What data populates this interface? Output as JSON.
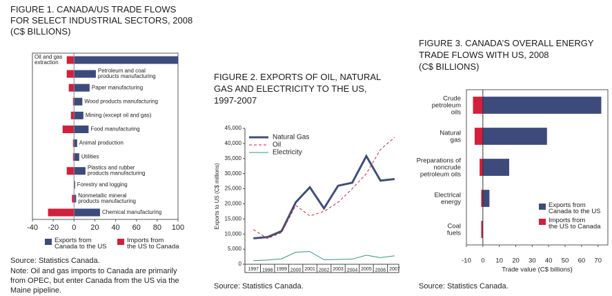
{
  "chart_data": [
    {
      "type": "bar",
      "orientation": "horizontal",
      "title": "FIGURE 1. CANADA/US TRADE FLOWS\nFOR SELECT INDUSTRIAL SECTORS, 2008\n(C$ BILLIONS)",
      "categories": [
        "Oil and gas\nextraction",
        "Petroleum and coal\nproducts manufacturing",
        "Paper manufacturing",
        "Wood products manufacturing",
        "Mining (except oil and gas)",
        "Food manufacturing",
        "Animal production",
        "Utilities",
        "Plastics and rubber\nproducts manufacturing",
        "Forestry and logging",
        "Nonmetallic mineral\nproducts manufacturing",
        "Chemical manufacturing"
      ],
      "series": [
        {
          "name": "Exports from\nCanada to the US",
          "color": "#3d4b7c",
          "values": [
            100,
            21,
            15,
            8,
            9,
            14,
            3,
            5,
            11,
            1,
            2,
            25
          ]
        },
        {
          "name": "Imports from\nthe US to Canada",
          "color": "#d21f3c",
          "values": [
            -7,
            -7,
            -5,
            -1,
            -3,
            -11,
            -1,
            -1,
            -7,
            0,
            -2,
            -25
          ]
        }
      ],
      "xlim": [
        -40,
        100
      ],
      "xticks": [
        -40,
        -20,
        0,
        20,
        40,
        60,
        80,
        100
      ],
      "legend": "bottom",
      "source": "Source: Statistics Canada.",
      "note": "Note: Oil and gas imports to Canada are primarily\nfrom OPEC, but enter Canada from the US via the\nMaine pipeline."
    },
    {
      "type": "line",
      "title": "FIGURE 2. EXPORTS OF OIL, NATURAL\nGAS AND ELECTRICITY TO THE US,\n1997-2007",
      "x": [
        1997,
        1998,
        1999,
        2000,
        2001,
        2002,
        2003,
        2004,
        2005,
        2006,
        2007
      ],
      "xlim": [
        1996.4,
        2007.3
      ],
      "series": [
        {
          "name": "Natural  Gas",
          "color": "#3f4e7c",
          "style": "solid",
          "values": [
            8600,
            9000,
            11000,
            20500,
            25500,
            18500,
            26000,
            27000,
            35800,
            27700,
            28200
          ]
        },
        {
          "name": "Oil",
          "color": "#d21f3c",
          "style": "dashed",
          "values": [
            11500,
            8500,
            10500,
            19500,
            16000,
            17500,
            20500,
            25000,
            30000,
            38000,
            42000
          ]
        },
        {
          "name": "Electricity",
          "color": "#2e9a6e",
          "style": "solid",
          "values": [
            1200,
            1400,
            1800,
            4000,
            4200,
            1500,
            1600,
            1700,
            3000,
            2200,
            2800
          ]
        }
      ],
      "ylabel": "Exports to US (C$ millions)",
      "ylim": [
        0,
        45000
      ],
      "yticks": [
        0,
        {
          "value": 5000,
          "label": "5,000"
        },
        {
          "value": 10000,
          "label": "10,000"
        },
        {
          "value": 15000,
          "label": "15,000"
        },
        {
          "value": 20000,
          "label": "20,000"
        },
        {
          "value": 25000,
          "label": "25,000"
        },
        {
          "value": 30000,
          "label": "30,000"
        },
        {
          "value": 35000,
          "label": "35,000"
        },
        {
          "value": 40000,
          "label": "40,000"
        },
        {
          "value": 45000,
          "label": "45,000"
        }
      ],
      "legend": "upper left",
      "source": "Source: Statistics Canada."
    },
    {
      "type": "bar",
      "orientation": "horizontal",
      "title": "FIGURE 3. CANADA’S OVERALL ENERGY\nTRADE FLOWS WITH US, 2008\n(C$ BILLIONS)",
      "categories": [
        "Crude\npetroleum\noils",
        "Natural\ngas",
        "Preparations of\nnoncrude\npetroleum oils",
        "Electrical\nenergy",
        "Coal\nfuels"
      ],
      "series": [
        {
          "name": "Exports from\nCanada to the US",
          "color": "#3d4b7c",
          "values": [
            72,
            39,
            16,
            4,
            0
          ]
        },
        {
          "name": "Imports from\nthe US to Canada",
          "color": "#d21f3c",
          "values": [
            -6,
            -5,
            -2,
            -1,
            -1
          ]
        }
      ],
      "xlim": [
        -10,
        76
      ],
      "xticks": [
        -10,
        0,
        10,
        20,
        30,
        40,
        50,
        60,
        70
      ],
      "xlabel": "Trade value (C$ billions)",
      "legend": "lower right",
      "source": "Source: Statistics Canada."
    }
  ]
}
